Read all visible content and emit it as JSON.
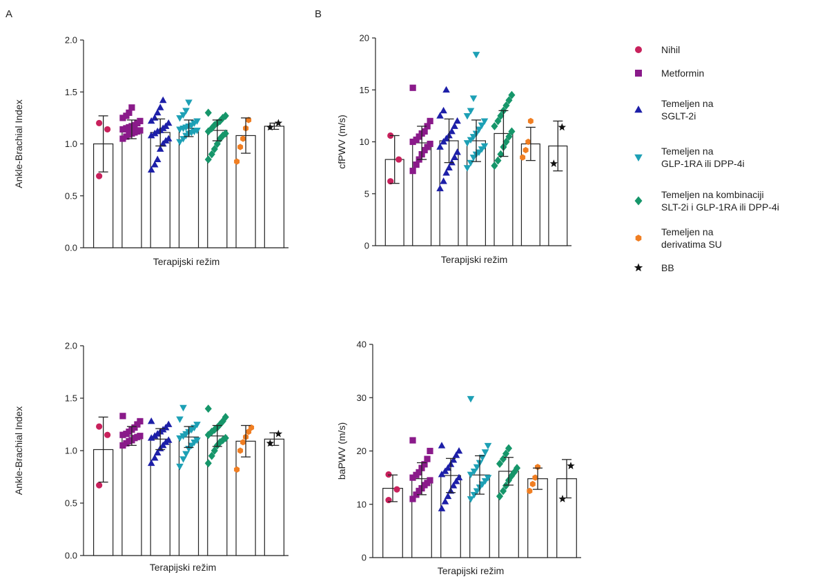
{
  "panels": {
    "a_label": "A",
    "b_label": "B"
  },
  "series": [
    {
      "name": "Nihil",
      "color": "#c8215c",
      "marker": "circle"
    },
    {
      "name": "Metformin",
      "color": "#8a1a8a",
      "marker": "square"
    },
    {
      "name": "Temeljen na\nSGLT-2i",
      "color": "#1d1fa8",
      "marker": "triangle-up"
    },
    {
      "name": "Temeljen na\nGLP-1RA ili DPP-4i",
      "color": "#1da0b5",
      "marker": "triangle-down"
    },
    {
      "name": "Temeljen na kombinaciji\nSLT-2i i GLP-1RA ili DPP-4i",
      "color": "#16966a",
      "marker": "diamond"
    },
    {
      "name": "Temeljen na\nderivatima SU",
      "color": "#f07e22",
      "marker": "hexagon"
    },
    {
      "name": "BB",
      "color": "#111111",
      "marker": "star"
    }
  ],
  "chart_data": [
    {
      "type": "bar",
      "panel": "A (top)",
      "xlabel": "Terapijski režim",
      "ylabel": "Ankle-Brachial Index",
      "ylim": [
        0,
        2.0
      ],
      "yticks": [
        "0.0",
        "0.5",
        "1.0",
        "1.5",
        "2.0"
      ],
      "categories": [
        "Nihil",
        "Metformin",
        "Temeljen na SGLT-2i",
        "Temeljen na GLP-1RA ili DPP-4i",
        "Temeljen na kombinaciji SLT-2i i GLP-1RA ili DPP-4i",
        "Temeljen na derivatima SU",
        "BB"
      ],
      "values": [
        1.0,
        1.14,
        1.11,
        1.15,
        1.13,
        1.08,
        1.17
      ],
      "error": [
        0.27,
        0.09,
        0.13,
        0.08,
        0.1,
        0.17,
        0.03
      ],
      "points": [
        [
          0.69,
          1.14,
          1.2
        ],
        [
          1.05,
          1.07,
          1.09,
          1.1,
          1.11,
          1.12,
          1.13,
          1.14,
          1.15,
          1.16,
          1.17,
          1.18,
          1.2,
          1.22,
          1.25,
          1.27,
          1.3,
          1.35
        ],
        [
          0.75,
          0.8,
          0.85,
          0.95,
          1.0,
          1.03,
          1.05,
          1.08,
          1.1,
          1.12,
          1.13,
          1.15,
          1.17,
          1.2,
          1.22,
          1.25,
          1.3,
          1.35,
          1.42
        ],
        [
          1.02,
          1.05,
          1.08,
          1.1,
          1.11,
          1.12,
          1.13,
          1.14,
          1.15,
          1.16,
          1.17,
          1.18,
          1.2,
          1.22,
          1.25,
          1.28,
          1.32,
          1.4
        ],
        [
          0.85,
          0.9,
          0.95,
          1.0,
          1.05,
          1.08,
          1.1,
          1.12,
          1.15,
          1.18,
          1.2,
          1.22,
          1.25,
          1.27,
          1.3
        ],
        [
          0.83,
          0.97,
          1.05,
          1.15,
          1.23
        ],
        [
          1.16,
          1.2
        ]
      ]
    },
    {
      "type": "bar",
      "panel": "B (top)",
      "xlabel": "Terapijski režim",
      "ylabel": "cfPWV (m/s)",
      "ylim": [
        0,
        20
      ],
      "yticks": [
        "0",
        "5",
        "10",
        "15",
        "20"
      ],
      "categories": [
        "Nihil",
        "Metformin",
        "Temeljen na SGLT-2i",
        "Temeljen na GLP-1RA ili DPP-4i",
        "Temeljen na kombinaciji SLT-2i i GLP-1RA ili DPP-4i",
        "Temeljen na derivatima SU",
        "BB"
      ],
      "values": [
        8.3,
        9.9,
        10.1,
        10.1,
        10.8,
        9.8,
        9.6
      ],
      "error": [
        2.3,
        1.6,
        2.1,
        2.0,
        2.2,
        1.6,
        2.4
      ],
      "points": [
        [
          6.2,
          8.3,
          10.6
        ],
        [
          7.2,
          7.8,
          8.3,
          8.8,
          9.2,
          9.5,
          9.8,
          10.0,
          10.2,
          10.5,
          10.8,
          11.0,
          11.5,
          12.0,
          15.2
        ],
        [
          5.5,
          6.2,
          7.0,
          7.5,
          8.0,
          8.5,
          9.0,
          9.5,
          10.0,
          10.3,
          10.6,
          11.0,
          11.5,
          12.0,
          12.5,
          13.0,
          15.0
        ],
        [
          7.5,
          8.0,
          8.5,
          8.8,
          9.0,
          9.3,
          9.6,
          9.9,
          10.2,
          10.5,
          10.8,
          11.2,
          11.6,
          12.0,
          12.5,
          13.0,
          14.2,
          18.4
        ],
        [
          7.7,
          8.2,
          8.8,
          9.5,
          10.0,
          10.5,
          11.0,
          11.5,
          12.0,
          12.5,
          13.0,
          13.5,
          14.0,
          14.5
        ],
        [
          8.5,
          9.2,
          10.0,
          12.0
        ],
        [
          7.9,
          11.4
        ]
      ]
    },
    {
      "type": "bar",
      "panel": "A (bottom)",
      "xlabel": "Terapijski režim",
      "ylabel": "Ankle-Brachial Index",
      "ylim": [
        0,
        2.0
      ],
      "yticks": [
        "0.0",
        "0.5",
        "1.0",
        "1.5",
        "2.0"
      ],
      "categories": [
        "Nihil",
        "Metformin",
        "Temeljen na SGLT-2i",
        "Temeljen na GLP-1RA ili DPP-4i",
        "Temeljen na kombinaciji SLT-2i i GLP-1RA ili DPP-4i",
        "Temeljen na derivatima SU",
        "BB"
      ],
      "values": [
        1.01,
        1.14,
        1.11,
        1.13,
        1.14,
        1.09,
        1.11
      ],
      "error": [
        0.31,
        0.09,
        0.1,
        0.1,
        0.1,
        0.15,
        0.06
      ],
      "points": [
        [
          0.67,
          1.15,
          1.23
        ],
        [
          1.05,
          1.07,
          1.09,
          1.1,
          1.12,
          1.13,
          1.14,
          1.15,
          1.16,
          1.18,
          1.2,
          1.22,
          1.25,
          1.28,
          1.33
        ],
        [
          0.88,
          0.93,
          0.98,
          1.02,
          1.05,
          1.08,
          1.1,
          1.12,
          1.14,
          1.16,
          1.18,
          1.2,
          1.22,
          1.25,
          1.28
        ],
        [
          0.85,
          0.92,
          0.97,
          1.02,
          1.05,
          1.08,
          1.1,
          1.12,
          1.14,
          1.16,
          1.18,
          1.2,
          1.22,
          1.25,
          1.3,
          1.41
        ],
        [
          0.88,
          0.95,
          1.0,
          1.05,
          1.08,
          1.1,
          1.12,
          1.15,
          1.18,
          1.2,
          1.22,
          1.25,
          1.28,
          1.32,
          1.4
        ],
        [
          0.82,
          1.0,
          1.08,
          1.13,
          1.18,
          1.22
        ],
        [
          1.07,
          1.16
        ]
      ]
    },
    {
      "type": "bar",
      "panel": "B (bottom)",
      "xlabel": "Terapijski režim",
      "ylabel": "baPWV (m/s)",
      "ylim": [
        0,
        40
      ],
      "yticks": [
        "0",
        "10",
        "20",
        "30",
        "40"
      ],
      "categories": [
        "Nihil",
        "Metformin",
        "Temeljen na SGLT-2i",
        "Temeljen na GLP-1RA ili DPP-4i",
        "Temeljen na kombinaciji SLT-2i i GLP-1RA ili DPP-4i",
        "Temeljen na derivatima SU",
        "BB"
      ],
      "values": [
        13.0,
        14.8,
        15.4,
        15.5,
        16.2,
        14.8,
        14.8
      ],
      "error": [
        2.5,
        3.0,
        3.2,
        3.6,
        2.6,
        2.0,
        3.6
      ],
      "points": [
        [
          10.8,
          12.8,
          15.6
        ],
        [
          11.0,
          11.8,
          12.5,
          13.0,
          13.6,
          14.0,
          14.5,
          15.0,
          15.5,
          16.0,
          16.8,
          17.5,
          18.5,
          20.0,
          22.0
        ],
        [
          9.2,
          10.5,
          11.5,
          12.5,
          13.5,
          14.3,
          15.0,
          15.6,
          16.2,
          16.8,
          17.5,
          18.3,
          19.2,
          20.0,
          21.0
        ],
        [
          11.0,
          11.8,
          12.5,
          13.2,
          13.8,
          14.4,
          15.0,
          15.6,
          16.2,
          17.0,
          17.8,
          18.8,
          19.8,
          21.0,
          29.8
        ],
        [
          11.5,
          12.5,
          13.5,
          14.5,
          15.3,
          16.0,
          16.8,
          17.6,
          18.5,
          19.5,
          20.5
        ],
        [
          12.5,
          13.8,
          15.0,
          17.0
        ],
        [
          11.0,
          17.2
        ]
      ]
    }
  ]
}
